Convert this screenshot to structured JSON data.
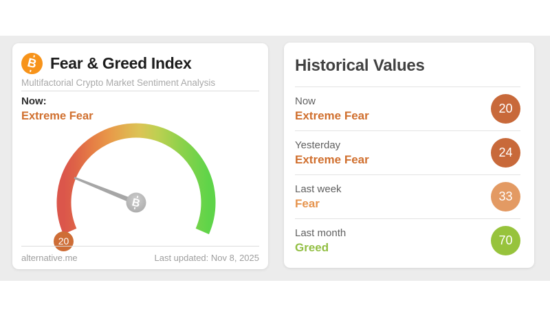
{
  "colors": {
    "band_background": "#ececec",
    "bitcoin_orange": "#f7931a",
    "needle_gray": "#a6a6a6"
  },
  "icons": {
    "bitcoin_glyph": "B"
  },
  "main_card": {
    "title": "Fear & Greed Index",
    "subtitle": "Multifactorial Crypto Market Sentiment Analysis",
    "now_label": "Now:",
    "now_classification": "Extreme Fear",
    "now_classification_color": "#d06f2e",
    "footer_site": "alternative.me",
    "footer_updated": "Last updated: Nov 8, 2025"
  },
  "gauge": {
    "value": 20,
    "min": 0,
    "max": 100,
    "badge_color": "#ce6d36"
  },
  "historical": {
    "title": "Historical Values",
    "rows": [
      {
        "label": "Now",
        "classification": "Extreme Fear",
        "value": 20,
        "text_color": "#d06f2e",
        "badge_color": "#c8693a"
      },
      {
        "label": "Yesterday",
        "classification": "Extreme Fear",
        "value": 24,
        "text_color": "#d06f2e",
        "badge_color": "#c8693a"
      },
      {
        "label": "Last week",
        "classification": "Fear",
        "value": 33,
        "text_color": "#e6944e",
        "badge_color": "#e39a63"
      },
      {
        "label": "Last month",
        "classification": "Greed",
        "value": 70,
        "text_color": "#92bf44",
        "badge_color": "#97c33c"
      }
    ]
  },
  "chart_data": {
    "type": "gauge",
    "title": "Fear & Greed Index",
    "value": 20,
    "min": 0,
    "max": 100,
    "classification": "Extreme Fear",
    "scale_colors": [
      "#db564b",
      "#e67f45",
      "#dbc455",
      "#90d14b",
      "#5fd449"
    ]
  }
}
